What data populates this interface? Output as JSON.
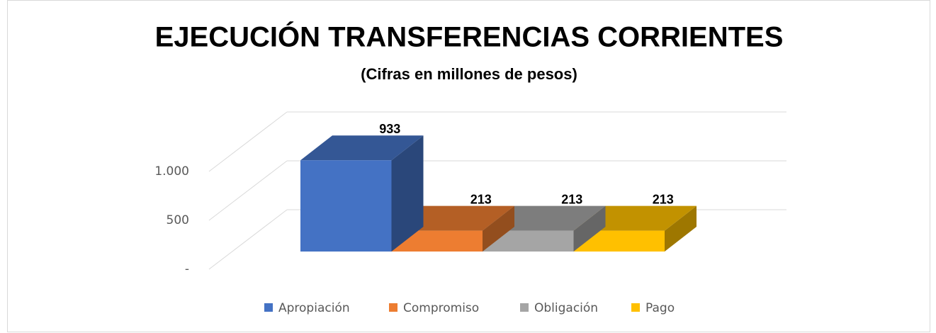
{
  "chart_data": {
    "type": "bar3d",
    "title": "EJECUCIÓN TRANSFERENCIAS CORRIENTES",
    "subtitle": "(Cifras en millones de pesos)",
    "categories": [
      null
    ],
    "series": [
      {
        "name": "Apropiación",
        "color": "#4472c4",
        "values": [
          933
        ]
      },
      {
        "name": "Compromiso",
        "color": "#ed7d31",
        "values": [
          213
        ]
      },
      {
        "name": "Obligación",
        "color": "#a5a5a5",
        "values": [
          213
        ]
      },
      {
        "name": "Pago",
        "color": "#ffc000",
        "values": [
          213
        ]
      }
    ],
    "ylim": [
      0,
      1000
    ],
    "yticks": [
      {
        "value": 0,
        "label": "-"
      },
      500,
      {
        "value": 1000,
        "label": "1.000"
      }
    ],
    "grid": true,
    "legend": "bottom"
  }
}
